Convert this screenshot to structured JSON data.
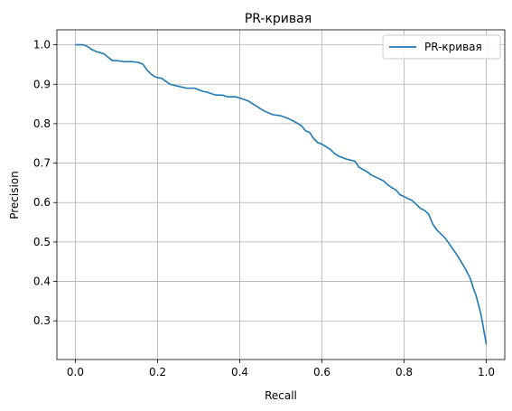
{
  "chart_data": {
    "type": "line",
    "title": "PR-кривая",
    "xlabel": "Recall",
    "ylabel": "Precision",
    "xlim": [
      -0.045,
      1.045
    ],
    "ylim": [
      0.202,
      1.038
    ],
    "xticks": [
      "0.0",
      "0.2",
      "0.4",
      "0.6",
      "0.8",
      "1.0"
    ],
    "xtick_values": [
      0.0,
      0.2,
      0.4,
      0.6,
      0.8,
      1.0
    ],
    "yticks": [
      "0.3",
      "0.4",
      "0.5",
      "0.6",
      "0.7",
      "0.8",
      "0.9",
      "1.0"
    ],
    "ytick_values": [
      0.3,
      0.4,
      0.5,
      0.6,
      0.7,
      0.8,
      0.9,
      1.0
    ],
    "grid": true,
    "legend_position": "upper right",
    "series": [
      {
        "name": "PR-кривая",
        "color": "#1f77b4",
        "x": [
          0.0,
          0.01,
          0.02,
          0.03,
          0.04,
          0.05,
          0.06,
          0.07,
          0.08,
          0.09,
          0.1,
          0.12,
          0.14,
          0.155,
          0.165,
          0.175,
          0.185,
          0.195,
          0.21,
          0.23,
          0.25,
          0.27,
          0.29,
          0.31,
          0.32,
          0.34,
          0.36,
          0.37,
          0.39,
          0.4,
          0.42,
          0.44,
          0.45,
          0.46,
          0.48,
          0.5,
          0.52,
          0.53,
          0.55,
          0.56,
          0.57,
          0.58,
          0.59,
          0.6,
          0.62,
          0.63,
          0.64,
          0.66,
          0.68,
          0.69,
          0.71,
          0.72,
          0.74,
          0.75,
          0.76,
          0.77,
          0.78,
          0.79,
          0.8,
          0.82,
          0.83,
          0.84,
          0.85,
          0.86,
          0.87,
          0.88,
          0.89,
          0.9,
          0.91,
          0.92,
          0.93,
          0.94,
          0.95,
          0.96,
          0.965,
          0.97,
          0.975,
          0.98,
          0.985,
          0.99,
          0.995,
          1.0
        ],
        "y": [
          1.0,
          1.0,
          1.0,
          0.995,
          0.988,
          0.983,
          0.98,
          0.977,
          0.968,
          0.96,
          0.96,
          0.957,
          0.957,
          0.955,
          0.95,
          0.935,
          0.925,
          0.918,
          0.915,
          0.9,
          0.895,
          0.89,
          0.89,
          0.882,
          0.88,
          0.873,
          0.872,
          0.868,
          0.868,
          0.865,
          0.858,
          0.845,
          0.838,
          0.832,
          0.823,
          0.82,
          0.812,
          0.807,
          0.795,
          0.782,
          0.778,
          0.762,
          0.752,
          0.748,
          0.735,
          0.725,
          0.718,
          0.71,
          0.705,
          0.69,
          0.678,
          0.67,
          0.66,
          0.655,
          0.645,
          0.638,
          0.632,
          0.62,
          0.615,
          0.605,
          0.595,
          0.585,
          0.58,
          0.57,
          0.545,
          0.53,
          0.52,
          0.51,
          0.495,
          0.48,
          0.465,
          0.448,
          0.43,
          0.41,
          0.395,
          0.378,
          0.365,
          0.345,
          0.325,
          0.3,
          0.27,
          0.24
        ]
      }
    ]
  }
}
